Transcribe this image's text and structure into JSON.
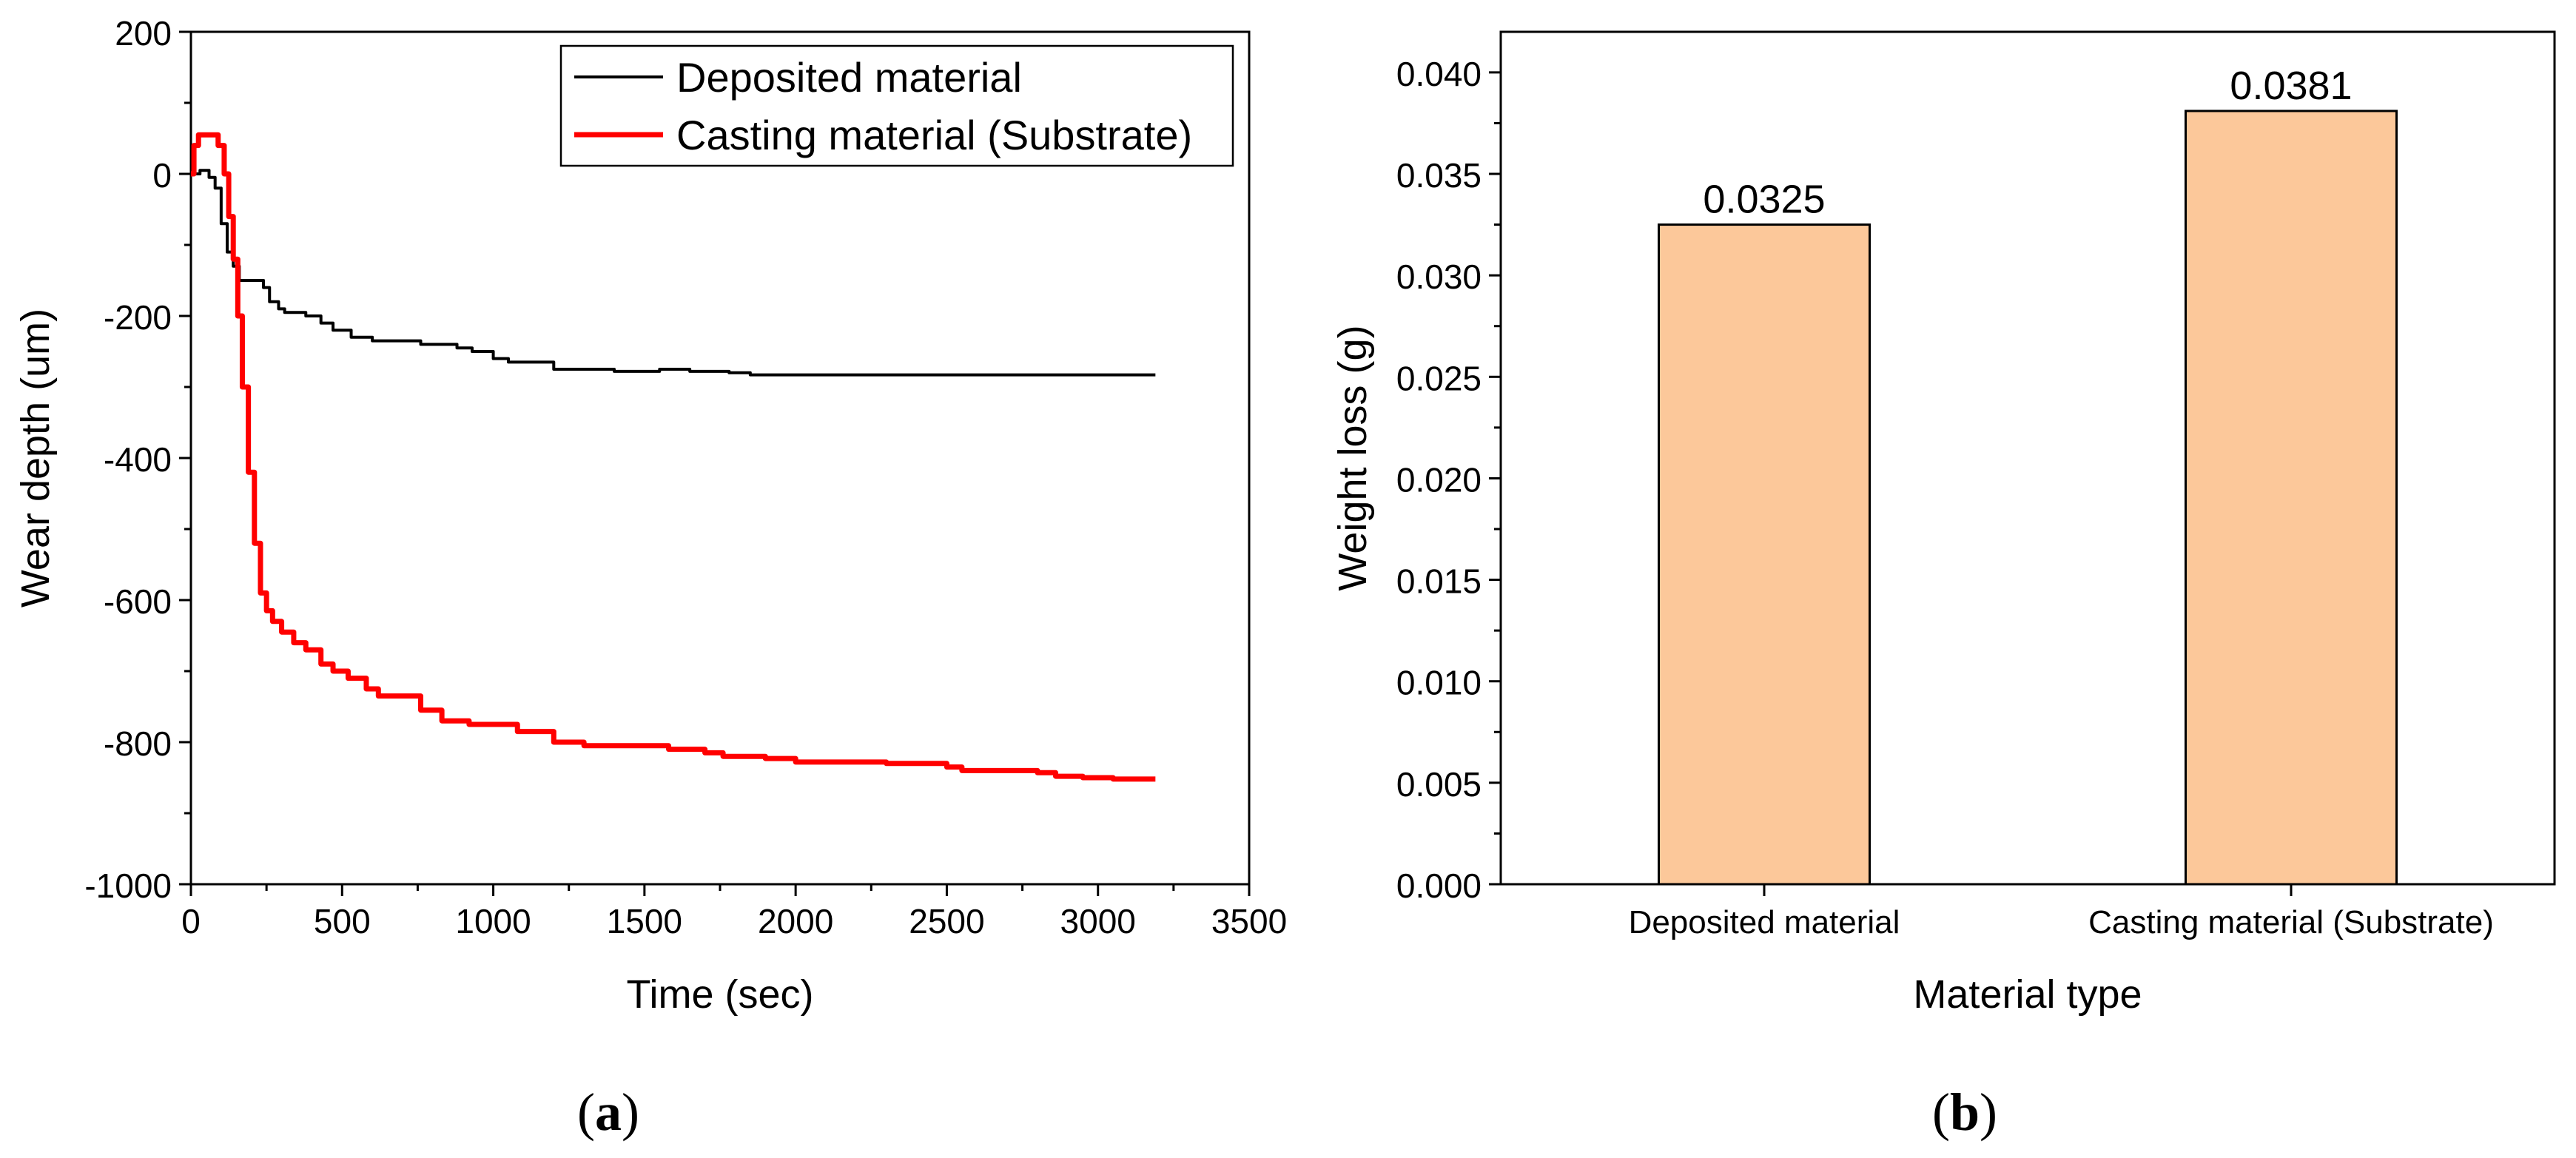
{
  "chart_data": [
    {
      "type": "line",
      "panel_label": "a",
      "xlabel": "Time (sec)",
      "ylabel": "Wear depth (um)",
      "xlim": [
        0,
        3500
      ],
      "ylim": [
        -1000,
        200
      ],
      "xticks": [
        0,
        500,
        1000,
        1500,
        2000,
        2500,
        3000,
        3500
      ],
      "yticks": [
        -1000,
        -800,
        -600,
        -400,
        -200,
        0,
        200
      ],
      "legend_position": "top-right",
      "series": [
        {
          "name": "Deposited material",
          "color": "#000000",
          "x": [
            0,
            30,
            60,
            80,
            100,
            120,
            140,
            160,
            200,
            220,
            240,
            260,
            290,
            310,
            340,
            380,
            430,
            470,
            530,
            600,
            700,
            760,
            880,
            930,
            1000,
            1050,
            1130,
            1200,
            1300,
            1400,
            1550,
            1650,
            1780,
            1850,
            2000,
            2100,
            2300,
            2500,
            2700,
            2900,
            3000,
            3190
          ],
          "values": [
            0,
            5,
            -5,
            -20,
            -70,
            -110,
            -130,
            -150,
            -150,
            -150,
            -160,
            -180,
            -190,
            -195,
            -195,
            -200,
            -210,
            -220,
            -230,
            -235,
            -235,
            -240,
            -245,
            -250,
            -260,
            -265,
            -265,
            -275,
            -275,
            -278,
            -275,
            -278,
            -280,
            -283,
            -283,
            -283,
            -283,
            -283,
            -283,
            -283,
            -283,
            -283
          ]
        },
        {
          "name": "Casting material (Substrate)",
          "color": "#ff0000",
          "x": [
            0,
            10,
            25,
            40,
            70,
            90,
            110,
            125,
            140,
            155,
            170,
            190,
            210,
            230,
            250,
            270,
            300,
            340,
            380,
            430,
            470,
            520,
            580,
            620,
            680,
            760,
            830,
            920,
            1000,
            1080,
            1200,
            1300,
            1450,
            1580,
            1700,
            1760,
            1900,
            2000,
            2300,
            2500,
            2550,
            2700,
            2800,
            2860,
            2950,
            3050,
            3190
          ],
          "values": [
            0,
            40,
            55,
            55,
            55,
            40,
            0,
            -60,
            -120,
            -200,
            -300,
            -420,
            -520,
            -590,
            -615,
            -630,
            -645,
            -660,
            -670,
            -690,
            -700,
            -710,
            -725,
            -735,
            -735,
            -755,
            -770,
            -775,
            -775,
            -785,
            -800,
            -805,
            -805,
            -810,
            -815,
            -820,
            -823,
            -828,
            -830,
            -835,
            -840,
            -840,
            -843,
            -848,
            -850,
            -852,
            -852
          ]
        }
      ]
    },
    {
      "type": "bar",
      "panel_label": "b",
      "xlabel": "Material type",
      "ylabel": "Weight loss (g)",
      "categories": [
        "Deposited material",
        "Casting material (Substrate)"
      ],
      "values": [
        0.0325,
        0.0381
      ],
      "value_labels": [
        "0.0325",
        "0.0381"
      ],
      "ylim": [
        0,
        0.042
      ],
      "yticks": [
        0.0,
        0.005,
        0.01,
        0.015,
        0.02,
        0.025,
        0.03,
        0.035,
        0.04
      ],
      "ytick_labels": [
        "0.000",
        "0.005",
        "0.010",
        "0.015",
        "0.020",
        "0.025",
        "0.030",
        "0.035",
        "0.040"
      ],
      "bar_color": "#fcc89a",
      "bar_edge_color": "#000000"
    }
  ]
}
